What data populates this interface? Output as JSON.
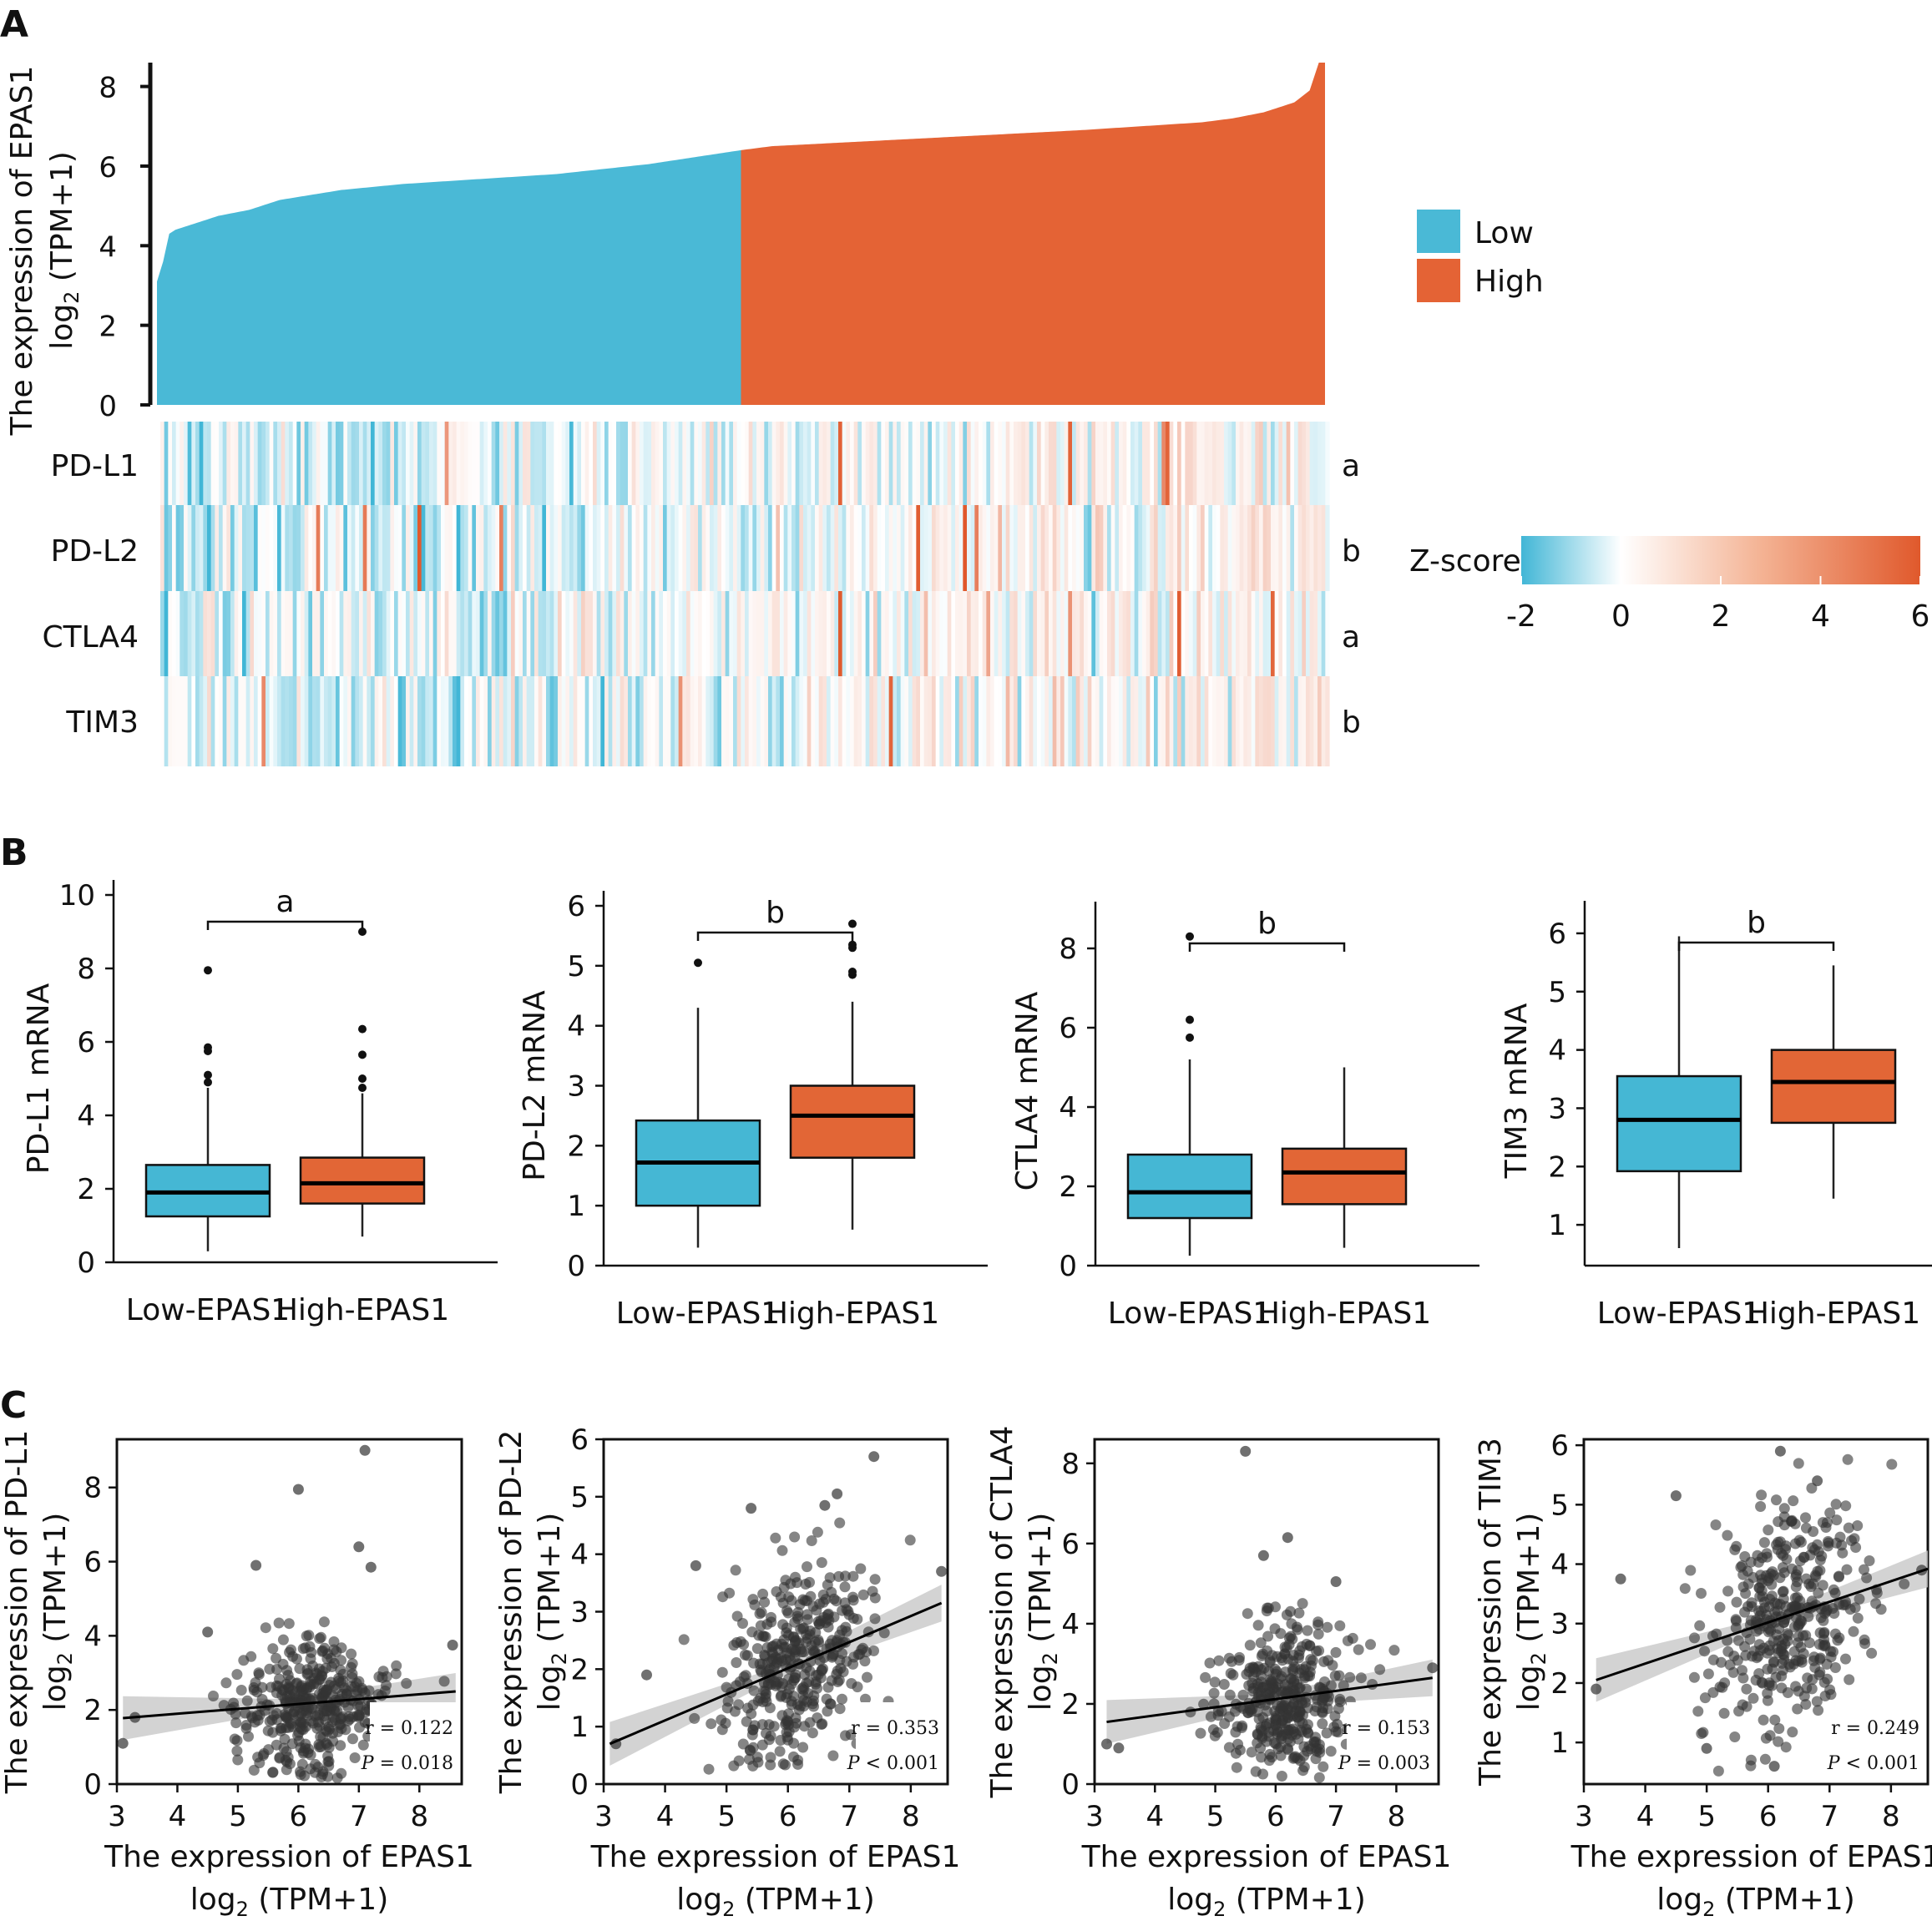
{
  "panel_labels": [
    "A",
    "B",
    "C"
  ],
  "colors": {
    "low": "#4ab9d6",
    "high": "#e46335",
    "box_low": "#45b7d4",
    "box_high": "#e26636",
    "point": "#333333"
  },
  "chart_data": [
    {
      "type": "area",
      "panel": "A",
      "ylabel_line1": "The expression of EPAS1",
      "ylabel_line2": "log2 (TPM+1)",
      "ylim": [
        0,
        8.6
      ],
      "yticks": [
        0,
        2,
        4,
        6,
        8
      ],
      "n_samples": 380,
      "legend": [
        {
          "name": "Low",
          "color": "#4ab9d6"
        },
        {
          "name": "High",
          "color": "#e46335"
        }
      ],
      "curve": [
        {
          "x": 0,
          "y": 3.1
        },
        {
          "x": 2,
          "y": 3.6
        },
        {
          "x": 4,
          "y": 4.3
        },
        {
          "x": 6,
          "y": 4.4
        },
        {
          "x": 10,
          "y": 4.5
        },
        {
          "x": 20,
          "y": 4.75
        },
        {
          "x": 30,
          "y": 4.9
        },
        {
          "x": 40,
          "y": 5.15
        },
        {
          "x": 60,
          "y": 5.4
        },
        {
          "x": 80,
          "y": 5.55
        },
        {
          "x": 100,
          "y": 5.65
        },
        {
          "x": 130,
          "y": 5.8
        },
        {
          "x": 160,
          "y": 6.05
        },
        {
          "x": 190,
          "y": 6.4
        },
        {
          "x": 200,
          "y": 6.5
        },
        {
          "x": 250,
          "y": 6.7
        },
        {
          "x": 300,
          "y": 6.9
        },
        {
          "x": 340,
          "y": 7.1
        },
        {
          "x": 350,
          "y": 7.2
        },
        {
          "x": 360,
          "y": 7.35
        },
        {
          "x": 370,
          "y": 7.6
        },
        {
          "x": 375,
          "y": 7.9
        },
        {
          "x": 378,
          "y": 8.6
        },
        {
          "x": 380,
          "y": 8.6
        }
      ],
      "split_index": 190
    },
    {
      "type": "heatmap",
      "panel": "A",
      "rows": [
        "PD-L1",
        "PD-L2",
        "CTLA4",
        "TIM3"
      ],
      "row_significance": [
        "a",
        "b",
        "a",
        "b"
      ],
      "colorbar_title": "Z-score",
      "colorbar_ticks": [
        -2,
        0,
        2,
        4,
        6
      ],
      "colorbar_range": [
        -2,
        6
      ]
    },
    {
      "type": "box",
      "panel": "B",
      "ylabel": "PD-L1 mRNA",
      "categories": [
        "Low-EPAS1",
        "High-EPAS1"
      ],
      "ylim": [
        0,
        10
      ],
      "yticks": [
        0,
        2,
        4,
        6,
        8,
        10
      ],
      "significance": "a",
      "boxes": [
        {
          "name": "Low-EPAS1",
          "min": 0.3,
          "q1": 1.25,
          "median": 1.9,
          "q3": 2.65,
          "max": 4.75,
          "outliers": [
            4.9,
            5.1,
            5.75,
            5.85,
            7.95
          ]
        },
        {
          "name": "High-EPAS1",
          "min": 0.7,
          "q1": 1.6,
          "median": 2.15,
          "q3": 2.85,
          "max": 4.6,
          "outliers": [
            4.75,
            5.0,
            5.65,
            6.35,
            9.0
          ]
        }
      ]
    },
    {
      "type": "box",
      "panel": "B",
      "ylabel": "PD-L2 mRNA",
      "categories": [
        "Low-EPAS1",
        "High-EPAS1"
      ],
      "ylim": [
        0,
        6
      ],
      "yticks": [
        0,
        1,
        2,
        3,
        4,
        5,
        6
      ],
      "significance": "b",
      "boxes": [
        {
          "name": "Low-EPAS1",
          "min": 0.3,
          "q1": 1.0,
          "median": 1.72,
          "q3": 2.42,
          "max": 4.3,
          "outliers": [
            5.05
          ]
        },
        {
          "name": "High-EPAS1",
          "min": 0.6,
          "q1": 1.8,
          "median": 2.5,
          "q3": 3.0,
          "max": 4.4,
          "outliers": [
            4.85,
            4.9,
            5.3,
            5.35,
            5.7
          ]
        }
      ]
    },
    {
      "type": "box",
      "panel": "B",
      "ylabel": "CTLA4 mRNA",
      "categories": [
        "Low-EPAS1",
        "High-EPAS1"
      ],
      "ylim": [
        0,
        8.8
      ],
      "yticks": [
        0,
        2,
        4,
        6,
        8
      ],
      "significance": "b",
      "boxes": [
        {
          "name": "Low-EPAS1",
          "min": 0.25,
          "q1": 1.2,
          "median": 1.85,
          "q3": 2.8,
          "max": 5.2,
          "outliers": [
            5.75,
            6.2,
            8.3
          ]
        },
        {
          "name": "High-EPAS1",
          "min": 0.45,
          "q1": 1.55,
          "median": 2.35,
          "q3": 2.95,
          "max": 5.0,
          "outliers": []
        }
      ]
    },
    {
      "type": "box",
      "panel": "B",
      "ylabel": "TIM3 mRNA",
      "categories": [
        "Low-EPAS1",
        "High-EPAS1"
      ],
      "ylim": [
        0.3,
        6.3
      ],
      "yticks": [
        1,
        2,
        3,
        4,
        5,
        6
      ],
      "significance": "b",
      "boxes": [
        {
          "name": "Low-EPAS1",
          "min": 0.6,
          "q1": 1.92,
          "median": 2.8,
          "q3": 3.55,
          "max": 5.95,
          "outliers": []
        },
        {
          "name": "High-EPAS1",
          "min": 1.45,
          "q1": 2.75,
          "median": 3.45,
          "q3": 4.0,
          "max": 5.45,
          "outliers": []
        }
      ]
    },
    {
      "type": "scatter",
      "panel": "C",
      "ylabel_line1": "The expression of PD-L1",
      "ylabel_line2": "log2 (TPM+1)",
      "xlabel_line1": "The expression of EPAS1",
      "xlabel_line2": "log2 (TPM+1)",
      "xlim": [
        3,
        8.7
      ],
      "ylim": [
        0,
        9.3
      ],
      "xticks": [
        3,
        4,
        5,
        6,
        7,
        8
      ],
      "yticks": [
        0,
        2,
        4,
        6,
        8
      ],
      "fit": {
        "x": [
          3.1,
          8.6
        ],
        "y": [
          1.78,
          2.5
        ]
      },
      "r_text": "r = 0.122",
      "p_symbol": "P",
      "p_text": " = 0.018",
      "cloud": {
        "x_mean": 6.2,
        "x_sd": 0.6,
        "y_mean": 2.0,
        "y_sd": 1.0,
        "n": 380
      },
      "extra_points": [
        [
          7.1,
          9.0
        ],
        [
          6.0,
          7.95
        ],
        [
          7.0,
          6.4
        ],
        [
          7.2,
          5.85
        ],
        [
          5.3,
          5.9
        ],
        [
          8.55,
          3.75
        ],
        [
          3.3,
          1.8
        ],
        [
          3.1,
          1.1
        ],
        [
          4.5,
          4.1
        ]
      ]
    },
    {
      "type": "scatter",
      "panel": "C",
      "ylabel_line1": "The expression of PD-L2",
      "ylabel_line2": "log2 (TPM+1)",
      "xlabel_line1": "The expression of EPAS1",
      "xlabel_line2": "log2 (TPM+1)",
      "xlim": [
        3,
        8.6
      ],
      "ylim": [
        0,
        6
      ],
      "xticks": [
        3,
        4,
        5,
        6,
        7,
        8
      ],
      "yticks": [
        0,
        1,
        2,
        3,
        4,
        5,
        6
      ],
      "fit": {
        "x": [
          3.1,
          8.5
        ],
        "y": [
          0.7,
          3.15
        ]
      },
      "r_text": "r = 0.353",
      "p_symbol": "P",
      "p_text": " < 0.001",
      "cloud": {
        "x_mean": 6.2,
        "x_sd": 0.6,
        "y_mean": 2.1,
        "y_sd": 0.85,
        "n": 380
      },
      "extra_points": [
        [
          7.4,
          5.7
        ],
        [
          6.8,
          5.05
        ],
        [
          6.6,
          4.85
        ],
        [
          5.4,
          4.8
        ],
        [
          8.5,
          3.7
        ],
        [
          3.2,
          0.7
        ],
        [
          3.7,
          1.9
        ],
        [
          4.5,
          3.8
        ]
      ]
    },
    {
      "type": "scatter",
      "panel": "C",
      "ylabel_line1": "The expression of CTLA4",
      "ylabel_line2": "log2 (TPM+1)",
      "xlabel_line1": "The expression of EPAS1",
      "xlabel_line2": "log2 (TPM+1)",
      "xlim": [
        3,
        8.7
      ],
      "ylim": [
        0,
        8.6
      ],
      "xticks": [
        3,
        4,
        5,
        6,
        7,
        8
      ],
      "yticks": [
        0,
        2,
        4,
        6,
        8
      ],
      "fit": {
        "x": [
          3.2,
          8.6
        ],
        "y": [
          1.55,
          2.65
        ]
      },
      "r_text": "r = 0.153",
      "p_symbol": "P",
      "p_text": " = 0.003",
      "cloud": {
        "x_mean": 6.2,
        "x_sd": 0.6,
        "y_mean": 2.1,
        "y_sd": 1.0,
        "n": 380
      },
      "extra_points": [
        [
          5.5,
          8.3
        ],
        [
          6.2,
          6.15
        ],
        [
          5.8,
          5.7
        ],
        [
          7.0,
          5.05
        ],
        [
          3.2,
          1.0
        ],
        [
          3.4,
          0.9
        ],
        [
          8.6,
          2.9
        ]
      ]
    },
    {
      "type": "scatter",
      "panel": "C",
      "ylabel_line1": "The expression of TIM3",
      "ylabel_line2": "log2 (TPM+1)",
      "xlabel_line1": "The expression of EPAS1",
      "xlabel_line2": "log2 (TPM+1)",
      "xlim": [
        3,
        8.6
      ],
      "ylim": [
        0.3,
        6.1
      ],
      "xticks": [
        3,
        4,
        5,
        6,
        7,
        8
      ],
      "yticks": [
        1,
        2,
        3,
        4,
        5,
        6
      ],
      "fit": {
        "x": [
          3.2,
          8.6
        ],
        "y": [
          2.05,
          3.92
        ]
      },
      "r_text": "r = 0.249",
      "p_symbol": "P",
      "p_text": " < 0.001",
      "cloud": {
        "x_mean": 6.3,
        "x_sd": 0.6,
        "y_mean": 3.0,
        "y_sd": 0.95,
        "n": 380
      },
      "extra_points": [
        [
          6.2,
          5.9
        ],
        [
          6.8,
          5.4
        ],
        [
          4.5,
          5.15
        ],
        [
          3.6,
          3.75
        ],
        [
          3.2,
          1.9
        ],
        [
          8.5,
          3.9
        ],
        [
          5.0,
          0.9
        ],
        [
          6.1,
          0.6
        ]
      ]
    }
  ]
}
